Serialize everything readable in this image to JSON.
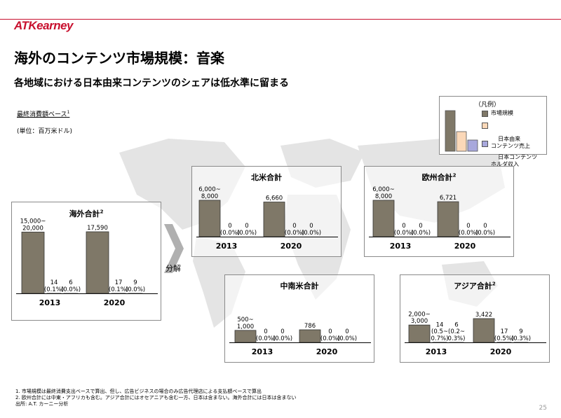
{
  "header": {
    "logo_text": "ATKearney",
    "title": "海外のコンテンツ市場規模：音楽",
    "subtitle": "各地域における日本由来コンテンツのシェアは低水準に留まる",
    "basis": "最終消費額ベース",
    "basis_sup": "1",
    "unit": "(単位：百万米ドル)"
  },
  "divide_label": "分解",
  "legend": {
    "title": "（凡例）",
    "items": [
      {
        "label": "市場規模",
        "color": "#7f7868"
      },
      {
        "label": "日本由来\nコンテンツ売上",
        "color": "#fbd8b8"
      },
      {
        "label": "日本コンテンツ\nホルダ収入",
        "color": "#a8a8dc"
      }
    ]
  },
  "colors": {
    "bar": "#7f7868",
    "border": "#8a8a8a",
    "accent": "#c8102e"
  },
  "chart_data": [
    {
      "type": "bar",
      "title": "海外合計",
      "title_sup": "2",
      "categories": [
        "2013",
        "2020"
      ],
      "ylim": [
        0,
        17590
      ],
      "groups": [
        {
          "year": "2013",
          "bars": [
            {
              "value": 17500,
              "label": "15,000~\n20,000"
            },
            {
              "value": 14,
              "label": "14\n(0.1%)"
            },
            {
              "value": 6,
              "label": "6\n(0.0%)"
            }
          ]
        },
        {
          "year": "2020",
          "bars": [
            {
              "value": 17590,
              "label": "17,590"
            },
            {
              "value": 17,
              "label": "17\n(0.1%)"
            },
            {
              "value": 9,
              "label": "9\n(0.0%)"
            }
          ]
        }
      ]
    },
    {
      "type": "bar",
      "title": "北米合計",
      "title_sup": "",
      "categories": [
        "2013",
        "2020"
      ],
      "ylim": [
        0,
        7000
      ],
      "groups": [
        {
          "year": "2013",
          "bars": [
            {
              "value": 7000,
              "label": "6,000~\n8,000"
            },
            {
              "value": 0,
              "label": "0\n(0.0%)"
            },
            {
              "value": 0,
              "label": "0\n(0.0%)"
            }
          ]
        },
        {
          "year": "2020",
          "bars": [
            {
              "value": 6660,
              "label": "6,660"
            },
            {
              "value": 0,
              "label": "0\n(0.0%)"
            },
            {
              "value": 0,
              "label": "0\n(0.0%)"
            }
          ]
        }
      ]
    },
    {
      "type": "bar",
      "title": "欧州合計",
      "title_sup": "2",
      "categories": [
        "2013",
        "2020"
      ],
      "ylim": [
        0,
        7000
      ],
      "groups": [
        {
          "year": "2013",
          "bars": [
            {
              "value": 7000,
              "label": "6,000~\n8,000"
            },
            {
              "value": 0,
              "label": "0\n(0.0%)"
            },
            {
              "value": 0,
              "label": "0\n(0.0%)"
            }
          ]
        },
        {
          "year": "2020",
          "bars": [
            {
              "value": 6721,
              "label": "6,721"
            },
            {
              "value": 0,
              "label": "0\n(0.0%)"
            },
            {
              "value": 0,
              "label": "0\n(0.0%)"
            }
          ]
        }
      ]
    },
    {
      "type": "bar",
      "title": "中南米合計",
      "title_sup": "",
      "categories": [
        "2013",
        "2020"
      ],
      "ylim": [
        0,
        786
      ],
      "groups": [
        {
          "year": "2013",
          "bars": [
            {
              "value": 750,
              "label": "500~\n1,000"
            },
            {
              "value": 0,
              "label": "0\n(0.0%)"
            },
            {
              "value": 0,
              "label": "0\n(0.0%)"
            }
          ]
        },
        {
          "year": "2020",
          "bars": [
            {
              "value": 786,
              "label": "786"
            },
            {
              "value": 0,
              "label": "0\n(0.0%)"
            },
            {
              "value": 0,
              "label": "0\n(0.0%)"
            }
          ]
        }
      ]
    },
    {
      "type": "bar",
      "title": "アジア合計",
      "title_sup": "2",
      "categories": [
        "2013",
        "2020"
      ],
      "ylim": [
        0,
        3422
      ],
      "groups": [
        {
          "year": "2013",
          "bars": [
            {
              "value": 2500,
              "label": "2,000~\n3,000"
            },
            {
              "value": 14,
              "label": "14\n(0.5~\n0.7%)"
            },
            {
              "value": 6,
              "label": "6\n(0.2~\n0.3%)"
            }
          ]
        },
        {
          "year": "2020",
          "bars": [
            {
              "value": 3422,
              "label": "3,422"
            },
            {
              "value": 17,
              "label": "17\n(0.5%)"
            },
            {
              "value": 9,
              "label": "9\n(0.3%)"
            }
          ]
        }
      ]
    }
  ],
  "footnotes": [
    "1.  市場規模は最終消費支出ベースで算出、但し、広告ビジネスの場合のみ広告代理店による支払額ベースで算出",
    "2.  欧州合計には中東・アフリカも含む。アジア合計にはオセアニアも含む一方、日本は含まない。海外合計には日本は含まない",
    "出所: A.T. カーニー分析"
  ],
  "page_number": "25"
}
